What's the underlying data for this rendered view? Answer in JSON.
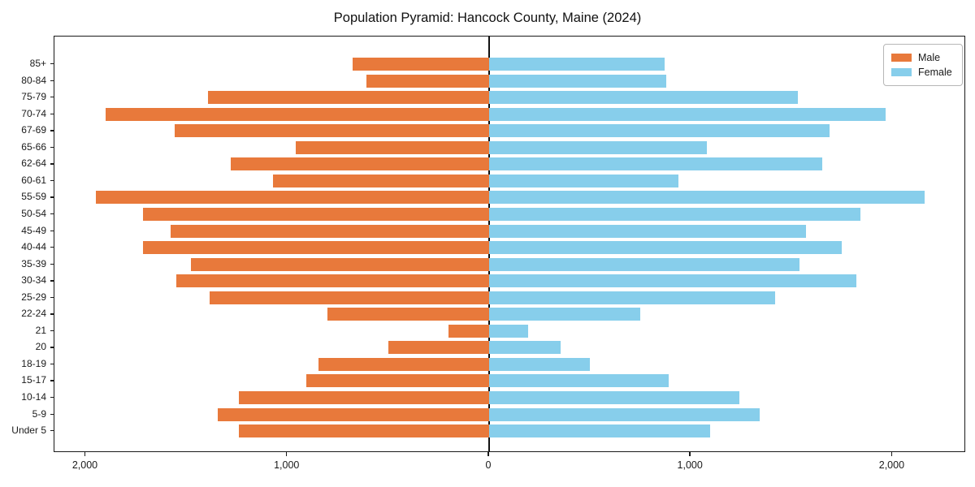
{
  "title": "Population Pyramid: Hancock County, Maine (2024)",
  "colors": {
    "male": "#e8793b",
    "female": "#87ceeb",
    "axis": "#1a1a1a"
  },
  "legend": {
    "position": "upper-right"
  },
  "chart_data": {
    "type": "bar",
    "orientation": "horizontal-pyramid",
    "title": "Population Pyramid: Hancock County, Maine (2024)",
    "xlabel": "",
    "ylabel": "",
    "grid": false,
    "legend_position": "upper-right",
    "categories": [
      "85+",
      "80-84",
      "75-79",
      "70-74",
      "67-69",
      "65-66",
      "62-64",
      "60-61",
      "55-59",
      "50-54",
      "45-49",
      "40-44",
      "35-39",
      "30-34",
      "25-29",
      "22-24",
      "21",
      "20",
      "18-19",
      "15-17",
      "10-14",
      "5-9",
      "Under 5"
    ],
    "series": [
      {
        "name": "Male",
        "side": "left",
        "color": "#e8793b",
        "values": [
          675,
          610,
          1395,
          1900,
          1560,
          960,
          1280,
          1070,
          1950,
          1715,
          1580,
          1715,
          1480,
          1550,
          1385,
          800,
          200,
          500,
          845,
          905,
          1240,
          1345,
          1240
        ]
      },
      {
        "name": "Female",
        "side": "right",
        "color": "#87ceeb",
        "values": [
          870,
          880,
          1530,
          1965,
          1690,
          1080,
          1650,
          940,
          2160,
          1840,
          1570,
          1750,
          1540,
          1820,
          1420,
          750,
          195,
          355,
          500,
          890,
          1240,
          1340,
          1095
        ]
      }
    ],
    "xlim": [
      -2155,
      2365
    ],
    "xticks": [
      {
        "value": -2000,
        "label": "2,000"
      },
      {
        "value": -1000,
        "label": "1,000"
      },
      {
        "value": 0,
        "label": "0"
      },
      {
        "value": 1000,
        "label": "1,000"
      },
      {
        "value": 2000,
        "label": "2,000"
      }
    ]
  }
}
